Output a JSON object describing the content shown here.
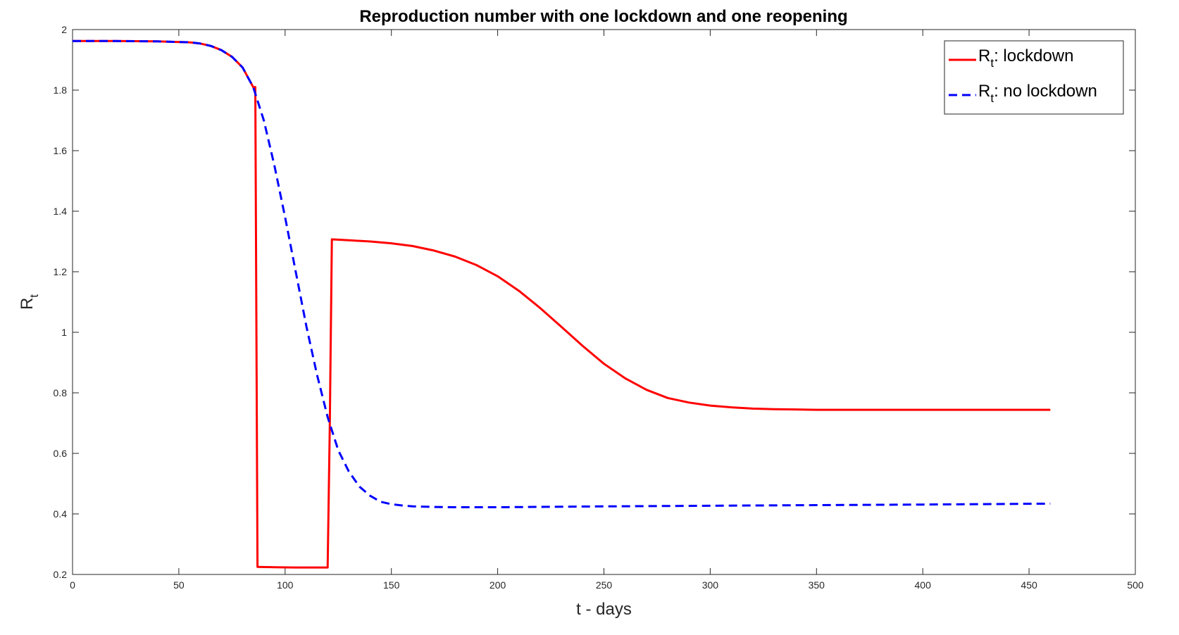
{
  "chart_data": {
    "type": "line",
    "title": "Reproduction number with one lockdown and one reopening",
    "xlabel": "t - days",
    "ylabel": {
      "main": "R",
      "sub": "t"
    },
    "xlim": [
      0,
      500
    ],
    "ylim": [
      0.2,
      2
    ],
    "xticks": [
      0,
      50,
      100,
      150,
      200,
      250,
      300,
      350,
      400,
      450,
      500
    ],
    "yticks": [
      0.2,
      0.4,
      0.6,
      0.8,
      1,
      1.2,
      1.4,
      1.6,
      1.8,
      2
    ],
    "xtick_labels": [
      "0",
      "50",
      "100",
      "150",
      "200",
      "250",
      "300",
      "350",
      "400",
      "450",
      "500"
    ],
    "ytick_labels": [
      "0.2",
      "0.4",
      "0.6",
      "0.8",
      "1",
      "1.2",
      "1.4",
      "1.6",
      "1.8",
      "2"
    ],
    "grid": false,
    "legend_position": "top-right",
    "series": [
      {
        "name": "R_t: lockdown",
        "legend_main": "R",
        "legend_sub": "t",
        "legend_rest": ": lockdown",
        "color": "#ff0000",
        "style": "solid",
        "x": [
          0,
          20,
          40,
          55,
          60,
          65,
          70,
          75,
          80,
          85,
          86,
          87,
          95,
          105,
          110,
          115,
          120,
          121,
          122,
          130,
          140,
          150,
          160,
          170,
          180,
          190,
          200,
          210,
          220,
          230,
          240,
          250,
          260,
          270,
          280,
          290,
          300,
          310,
          320,
          330,
          340,
          350,
          360,
          380,
          400,
          420,
          440,
          460
        ],
        "y": [
          1.962,
          1.962,
          1.961,
          1.958,
          1.954,
          1.946,
          1.932,
          1.91,
          1.875,
          1.81,
          1.81,
          0.225,
          0.224,
          0.223,
          0.223,
          0.223,
          0.223,
          0.68,
          1.307,
          1.304,
          1.3,
          1.294,
          1.285,
          1.27,
          1.25,
          1.222,
          1.185,
          1.137,
          1.08,
          1.018,
          0.955,
          0.896,
          0.848,
          0.81,
          0.783,
          0.768,
          0.758,
          0.752,
          0.748,
          0.746,
          0.745,
          0.744,
          0.744,
          0.744,
          0.744,
          0.744,
          0.744,
          0.744
        ]
      },
      {
        "name": "R_t: no lockdown",
        "legend_main": "R",
        "legend_sub": "t",
        "legend_rest": ": no lockdown",
        "color": "#0000ff",
        "style": "dashed",
        "x": [
          0,
          20,
          40,
          55,
          60,
          65,
          70,
          75,
          80,
          85,
          90,
          95,
          100,
          105,
          110,
          115,
          120,
          125,
          130,
          135,
          140,
          145,
          150,
          155,
          160,
          170,
          180,
          190,
          200,
          250,
          300,
          350,
          400,
          460
        ],
        "y": [
          1.962,
          1.962,
          1.961,
          1.958,
          1.954,
          1.946,
          1.932,
          1.91,
          1.875,
          1.81,
          1.7,
          1.55,
          1.38,
          1.2,
          1.02,
          0.86,
          0.72,
          0.61,
          0.54,
          0.49,
          0.46,
          0.44,
          0.432,
          0.428,
          0.425,
          0.423,
          0.422,
          0.422,
          0.422,
          0.425,
          0.427,
          0.429,
          0.431,
          0.434
        ]
      }
    ]
  }
}
